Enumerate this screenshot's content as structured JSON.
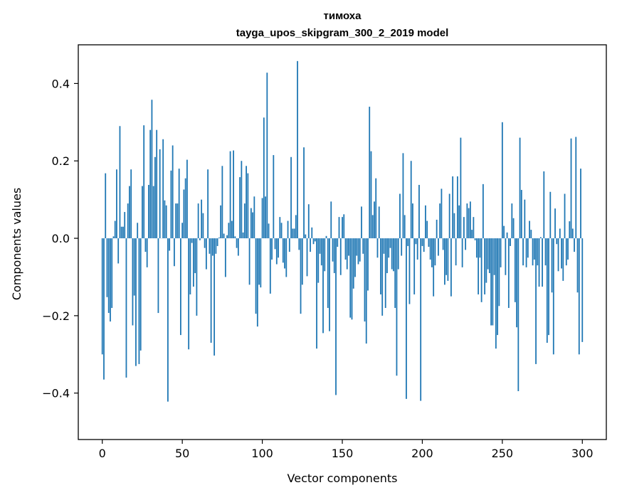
{
  "chart_data": {
    "type": "bar",
    "title": "тимоха",
    "subtitle": "tayga_upos_skipgram_300_2_2019 model",
    "xlabel": "Vector components",
    "ylabel": "Components values",
    "xlim": [
      -15,
      315
    ],
    "ylim": [
      -0.52,
      0.5
    ],
    "xticks": [
      0,
      50,
      100,
      150,
      200,
      250,
      300
    ],
    "yticks": [
      -0.4,
      -0.2,
      0.0,
      0.2,
      0.4
    ],
    "ytick_labels": [
      "−0.4",
      "−0.2",
      "0.0",
      "0.2",
      "0.4"
    ],
    "bar_color": "#1f77b4",
    "values": [
      -0.3,
      -0.365,
      0.168,
      -0.152,
      -0.193,
      -0.215,
      -0.18,
      0.005,
      0.045,
      0.178,
      -0.065,
      0.29,
      0.03,
      0.03,
      0.068,
      -0.36,
      0.09,
      0.135,
      0.178,
      -0.225,
      -0.148,
      -0.33,
      0.04,
      -0.325,
      -0.29,
      0.135,
      0.292,
      -0.035,
      -0.075,
      0.138,
      0.28,
      0.358,
      0.135,
      0.21,
      0.28,
      -0.193,
      0.23,
      0.0,
      0.256,
      0.098,
      0.085,
      -0.422,
      -0.032,
      0.175,
      0.24,
      -0.072,
      0.09,
      0.09,
      0.18,
      -0.25,
      0.04,
      0.126,
      0.155,
      0.203,
      -0.287,
      -0.145,
      -0.012,
      -0.125,
      -0.09,
      -0.2,
      0.09,
      -0.005,
      0.1,
      0.065,
      -0.025,
      -0.08,
      0.178,
      -0.04,
      -0.27,
      -0.045,
      -0.303,
      -0.04,
      -0.02,
      0.002,
      0.085,
      0.187,
      0.012,
      -0.1,
      0.008,
      0.04,
      0.225,
      0.045,
      0.227,
      0.005,
      -0.025,
      -0.045,
      0.158,
      0.2,
      0.015,
      0.09,
      0.187,
      0.168,
      -0.12,
      0.078,
      0.067,
      0.108,
      -0.195,
      -0.228,
      -0.12,
      -0.127,
      0.104,
      0.312,
      0.108,
      0.428,
      0.038,
      -0.143,
      -0.055,
      0.215,
      -0.028,
      -0.067,
      -0.05,
      0.055,
      0.04,
      -0.063,
      -0.078,
      -0.1,
      0.045,
      -0.035,
      0.21,
      0.025,
      0.025,
      0.06,
      0.458,
      -0.03,
      -0.195,
      -0.12,
      0.235,
      0.01,
      -0.098,
      0.088,
      -0.035,
      0.028,
      -0.015,
      -0.008,
      -0.285,
      -0.115,
      -0.04,
      -0.07,
      -0.245,
      -0.085,
      0.006,
      -0.18,
      -0.24,
      0.095,
      -0.06,
      -0.09,
      -0.405,
      -0.022,
      0.055,
      -0.095,
      0.055,
      0.062,
      -0.055,
      -0.08,
      -0.045,
      -0.205,
      -0.21,
      -0.13,
      -0.1,
      -0.045,
      -0.067,
      -0.06,
      0.082,
      -0.04,
      -0.215,
      -0.272,
      -0.135,
      0.34,
      0.225,
      0.06,
      0.095,
      0.155,
      -0.05,
      0.082,
      -0.145,
      -0.2,
      -0.04,
      -0.18,
      -0.09,
      -0.05,
      -0.025,
      -0.08,
      -0.085,
      -0.18,
      -0.355,
      -0.08,
      0.115,
      -0.045,
      0.22,
      0.06,
      -0.415,
      -0.02,
      -0.17,
      0.2,
      0.09,
      -0.145,
      -0.015,
      -0.055,
      0.138,
      -0.42,
      -0.02,
      -0.035,
      0.085,
      0.045,
      -0.022,
      -0.055,
      -0.075,
      -0.15,
      -0.07,
      0.048,
      -0.045,
      0.09,
      0.128,
      -0.03,
      -0.12,
      -0.095,
      -0.11,
      0.115,
      -0.15,
      0.16,
      0.065,
      -0.07,
      0.16,
      0.085,
      0.26,
      -0.075,
      0.055,
      -0.03,
      0.09,
      0.078,
      0.095,
      0.022,
      0.055,
      -0.005,
      -0.05,
      -0.145,
      -0.05,
      -0.165,
      0.14,
      -0.145,
      -0.115,
      -0.08,
      -0.09,
      -0.225,
      -0.225,
      -0.095,
      -0.285,
      -0.25,
      -0.175,
      -0.075,
      0.3,
      0.032,
      -0.095,
      0.015,
      -0.18,
      -0.02,
      0.09,
      0.052,
      -0.165,
      -0.23,
      -0.395,
      0.26,
      0.125,
      -0.07,
      0.1,
      -0.075,
      -0.05,
      0.045,
      0.022,
      -0.07,
      -0.055,
      -0.325,
      -0.07,
      -0.125,
      0.003,
      -0.125,
      0.173,
      -0.07,
      -0.27,
      -0.25,
      0.12,
      -0.14,
      -0.3,
      0.077,
      -0.015,
      -0.085,
      0.025,
      -0.078,
      -0.11,
      0.115,
      -0.07,
      -0.055,
      0.044,
      0.258,
      0.025,
      -0.035,
      0.262,
      -0.14,
      -0.3,
      0.18,
      -0.268
    ]
  }
}
